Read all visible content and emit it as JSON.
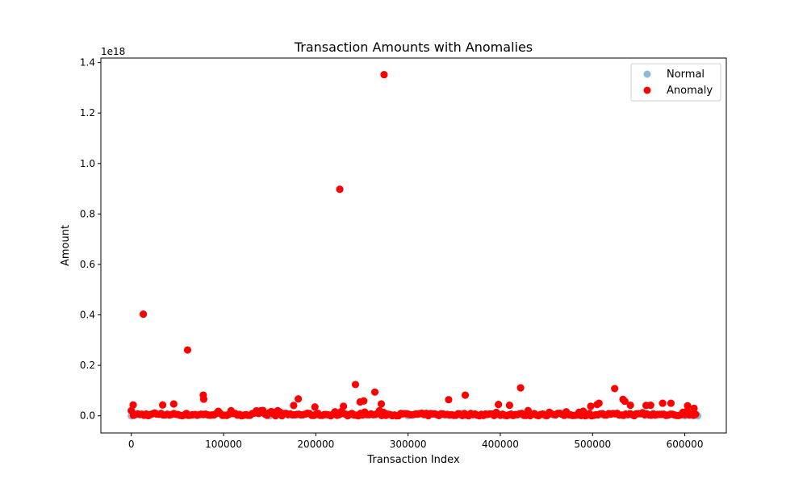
{
  "chart_data": {
    "type": "scatter",
    "title": "Transaction Amounts with Anomalies",
    "xlabel": "Transaction Index",
    "ylabel": "Amount",
    "y_offset_label": "1e18",
    "y_multiplier": 1e+18,
    "xlim": [
      -33000,
      645000
    ],
    "ylim": [
      -0.068,
      1.418
    ],
    "x_ticks": [
      0,
      100000,
      200000,
      300000,
      400000,
      500000,
      600000
    ],
    "x_tick_labels": [
      "0",
      "100000",
      "200000",
      "300000",
      "400000",
      "500000",
      "600000"
    ],
    "y_ticks": [
      0.0,
      0.2,
      0.4,
      0.6,
      0.8,
      1.0,
      1.2,
      1.4
    ],
    "y_tick_labels": [
      "0.0",
      "0.2",
      "0.4",
      "0.6",
      "0.8",
      "1.0",
      "1.2",
      "1.4"
    ],
    "grid": false,
    "legend_position": "top-right",
    "series": [
      {
        "name": "Normal",
        "color": "#1f77b4",
        "alpha": 0.5,
        "x": [
          0,
          150000,
          300000,
          450000,
          600000,
          614000
        ],
        "y": [
          0,
          0,
          0,
          0,
          0,
          0
        ]
      },
      {
        "name": "Anomaly",
        "color": "#ff0000",
        "x": [
          274000,
          226000,
          13000,
          61000,
          78000,
          78500,
          243000,
          264000,
          248000,
          252000,
          271000,
          181000,
          362000,
          344000,
          422000,
          524000,
          533000,
          535000,
          2000,
          34000,
          46000,
          176000,
          199000,
          230000,
          398000,
          410000,
          498000,
          505000,
          507000,
          541000,
          558000,
          563000,
          576000,
          585000,
          603000,
          610000
        ],
        "y": [
          1.352,
          0.898,
          0.403,
          0.261,
          0.082,
          0.066,
          0.124,
          0.094,
          0.055,
          0.059,
          0.047,
          0.067,
          0.082,
          0.064,
          0.111,
          0.108,
          0.065,
          0.058,
          0.043,
          0.043,
          0.047,
          0.041,
          0.035,
          0.038,
          0.045,
          0.042,
          0.038,
          0.045,
          0.05,
          0.042,
          0.041,
          0.042,
          0.05,
          0.05,
          0.04,
          0.03
        ]
      }
    ]
  }
}
